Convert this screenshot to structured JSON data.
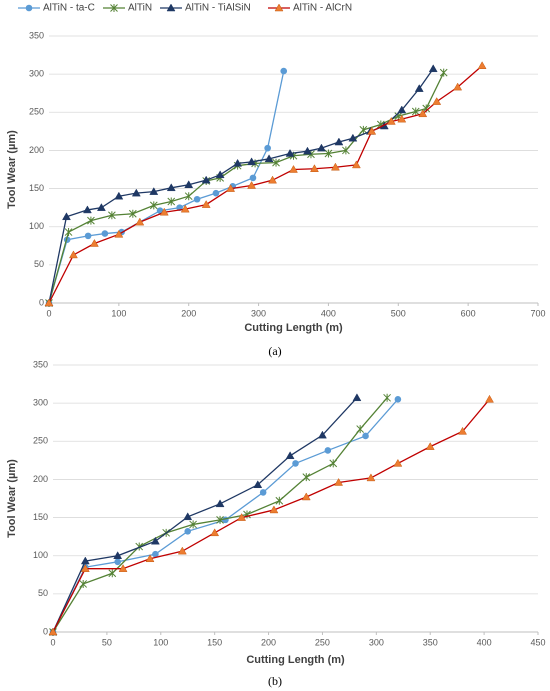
{
  "chart_data": [
    {
      "type": "line",
      "caption": "(a)",
      "xlabel": "Cutting Length (m)",
      "ylabel": "Tool Wear (µm)",
      "xlim": [
        0,
        700
      ],
      "xticks": [
        0,
        100,
        200,
        300,
        400,
        500,
        600,
        700
      ],
      "ylim": [
        0,
        350
      ],
      "yticks": [
        0,
        50,
        100,
        150,
        200,
        250,
        300,
        350
      ],
      "grid": true,
      "series": [
        {
          "name": "AlTiN - ta-C",
          "color": "#5b9bd5",
          "marker": "circle",
          "marker_color": "#5b9bd5",
          "x": [
            0,
            26,
            56,
            80,
            104,
            159,
            187,
            212,
            239,
            263,
            292,
            313,
            336
          ],
          "values": [
            0,
            83,
            88,
            91,
            93,
            121,
            125,
            136,
            144,
            153,
            164,
            203,
            304
          ]
        },
        {
          "name": "AlTiN",
          "color": "#548235",
          "marker": "star",
          "marker_color": "#548235",
          "x": [
            0,
            28,
            60,
            90,
            120,
            150,
            175,
            200,
            225,
            245,
            270,
            295,
            325,
            350,
            375,
            400,
            425,
            450,
            475,
            500,
            525,
            540,
            565
          ],
          "values": [
            0,
            93,
            108,
            115,
            117,
            128,
            133,
            140,
            160,
            164,
            180,
            183,
            184,
            193,
            195,
            196,
            200,
            227,
            234,
            245,
            251,
            255,
            302
          ]
        },
        {
          "name": "AlTiN - TiAlSiN",
          "color": "#1f3864",
          "marker": "triangle",
          "marker_color": "#1f3864",
          "x": [
            0,
            25,
            55,
            75,
            100,
            125,
            150,
            175,
            200,
            225,
            245,
            270,
            290,
            315,
            345,
            370,
            390,
            415,
            435,
            460,
            480,
            505,
            530,
            550
          ],
          "values": [
            0,
            113,
            122,
            125,
            140,
            144,
            146,
            151,
            155,
            161,
            168,
            183,
            185,
            189,
            196,
            199,
            203,
            211,
            216,
            225,
            232,
            253,
            281,
            307
          ]
        },
        {
          "name": "AlTiN - AlCrN",
          "color": "#c00000",
          "marker": "triangle",
          "marker_color": "#ed7d31",
          "x": [
            0,
            35,
            65,
            100,
            130,
            165,
            195,
            225,
            260,
            290,
            320,
            350,
            380,
            410,
            440,
            462,
            490,
            505,
            535,
            555,
            585,
            620
          ],
          "values": [
            0,
            63,
            78,
            90,
            106,
            119,
            123,
            129,
            150,
            154,
            161,
            175,
            176,
            178,
            181,
            225,
            238,
            241,
            248,
            264,
            283,
            311
          ]
        }
      ]
    },
    {
      "type": "line",
      "caption": "(b)",
      "xlabel": "Cutting Length (m)",
      "ylabel": "Tool Wear (µm)",
      "xlim": [
        0,
        450
      ],
      "xticks": [
        0,
        50,
        100,
        150,
        200,
        250,
        300,
        350,
        400,
        450
      ],
      "ylim": [
        0,
        350
      ],
      "yticks": [
        0,
        50,
        100,
        150,
        200,
        250,
        300,
        350
      ],
      "grid": true,
      "series": [
        {
          "name": "AlTiN - ta-C",
          "color": "#5b9bd5",
          "marker": "circle",
          "marker_color": "#5b9bd5",
          "x": [
            0,
            30,
            60,
            95,
            125,
            160,
            195,
            225,
            255,
            290,
            320
          ],
          "values": [
            0,
            85,
            92,
            102,
            132,
            147,
            183,
            221,
            238,
            257,
            305
          ]
        },
        {
          "name": "AlTiN",
          "color": "#548235",
          "marker": "star",
          "marker_color": "#548235",
          "x": [
            0,
            28,
            55,
            80,
            105,
            130,
            155,
            180,
            210,
            235,
            260,
            285,
            310
          ],
          "values": [
            0,
            63,
            77,
            112,
            130,
            141,
            147,
            154,
            172,
            203,
            221,
            266,
            307
          ]
        },
        {
          "name": "AlTiN - TiAlSiN",
          "color": "#1f3864",
          "marker": "triangle",
          "marker_color": "#1f3864",
          "x": [
            0,
            30,
            60,
            95,
            125,
            155,
            190,
            220,
            250,
            282
          ],
          "values": [
            0,
            93,
            100,
            119,
            151,
            168,
            193,
            231,
            258,
            307
          ]
        },
        {
          "name": "AlTiN - AlCrN",
          "color": "#c00000",
          "marker": "triangle",
          "marker_color": "#ed7d31",
          "x": [
            0,
            30,
            65,
            90,
            120,
            150,
            175,
            205,
            235,
            265,
            295,
            320,
            350,
            380,
            405
          ],
          "values": [
            0,
            83,
            83,
            96,
            106,
            130,
            150,
            160,
            177,
            196,
            202,
            221,
            243,
            263,
            305
          ]
        }
      ]
    }
  ]
}
